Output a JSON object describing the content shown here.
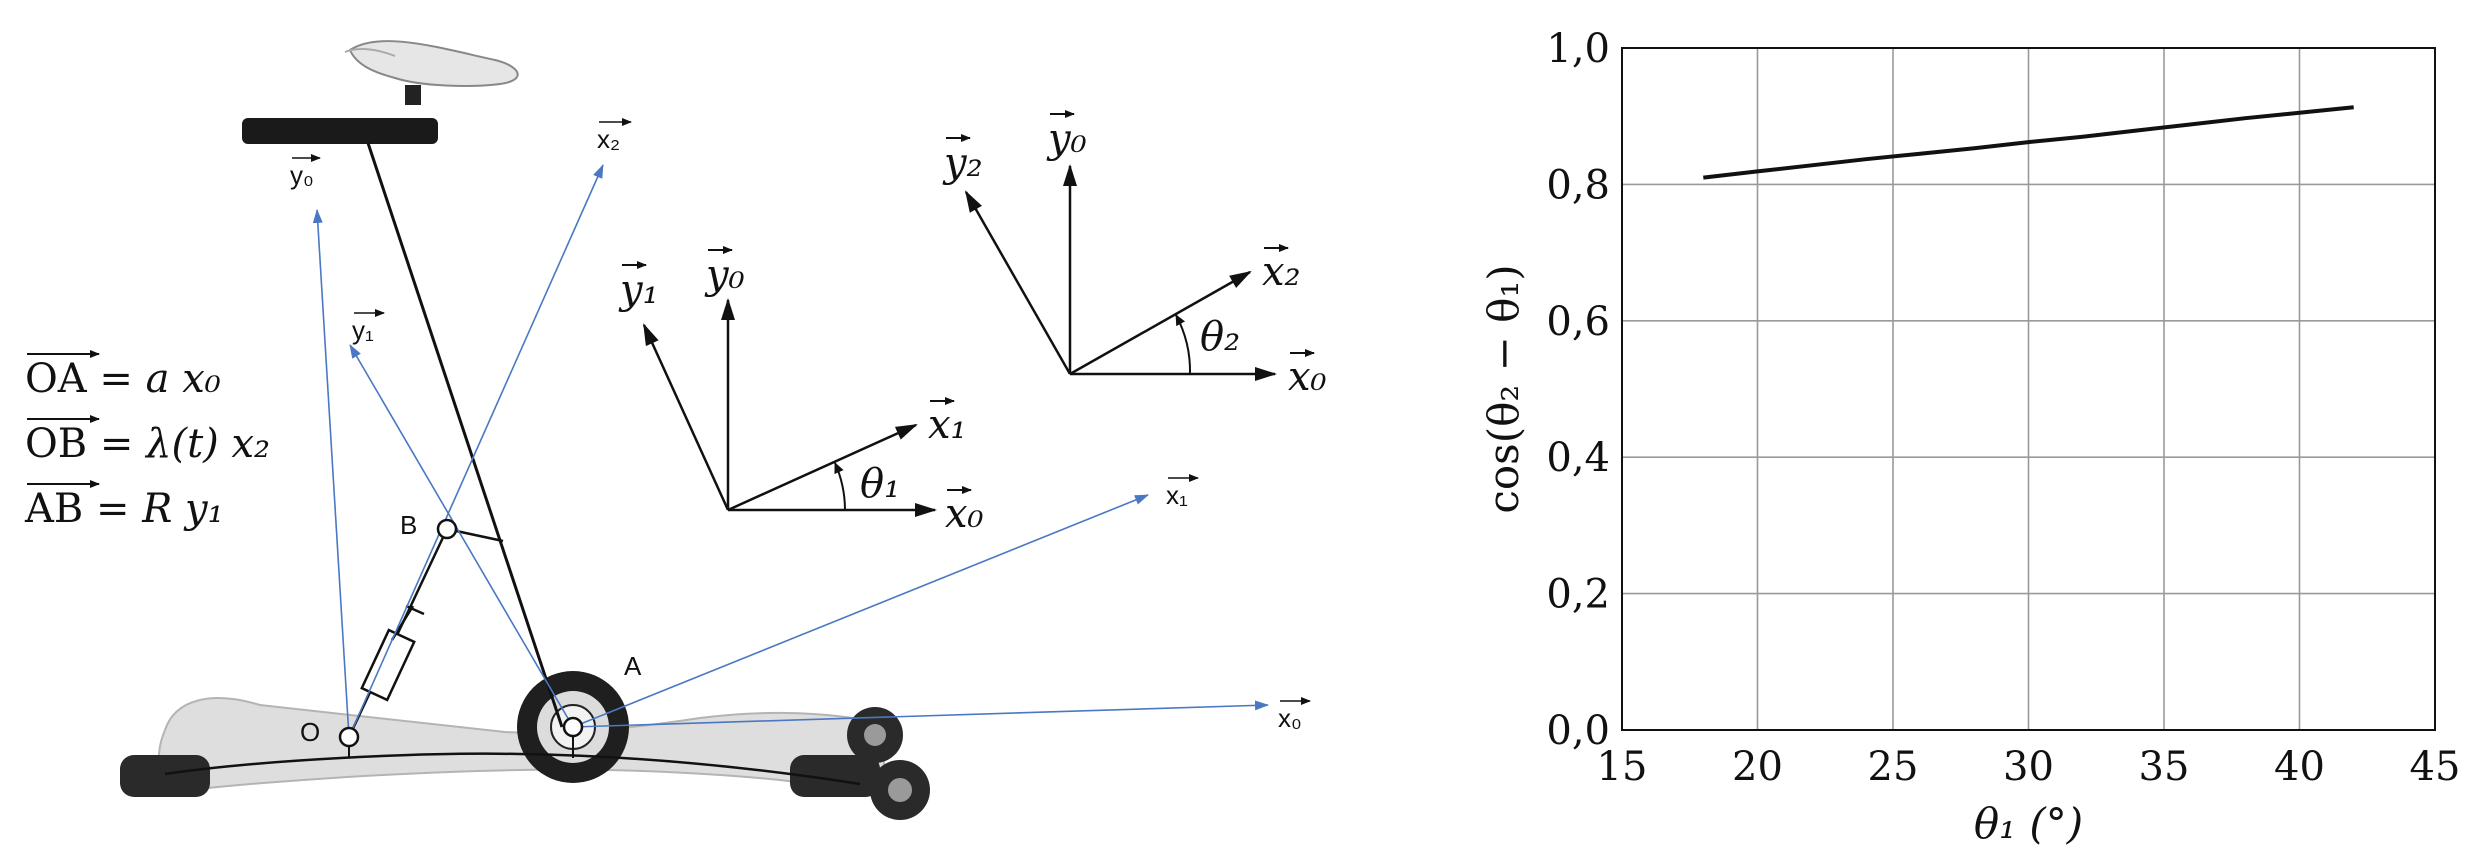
{
  "colors": {
    "ink": "#111111",
    "blue_axis": "#4a78c4",
    "grid": "#9a9a9a",
    "frame_grey": "#d2d2d2",
    "dark": "#1a1a1a"
  },
  "mechanism": {
    "points": {
      "O": "O",
      "A": "A",
      "B": "B"
    },
    "axis_labels": {
      "x0": "x₀",
      "y0": "y₀",
      "x1": "x₁",
      "y1": "y₁",
      "x2": "x₂"
    },
    "equations": [
      {
        "lhs": "OA",
        "rhs": " = a x₀"
      },
      {
        "lhs": "OB",
        "rhs": " = λ(t) x₂"
      },
      {
        "lhs": "AB",
        "rhs": " = R y₁"
      }
    ]
  },
  "frame1": {
    "labels": {
      "x1": "x₁",
      "y1": "y₁",
      "x0": "x₀",
      "y0": "y₀",
      "angle": "θ₁"
    }
  },
  "frame2": {
    "labels": {
      "x2": "x₂",
      "y2": "y₂",
      "x0": "x₀",
      "y0": "y₀",
      "angle": "θ₂"
    }
  },
  "chart_data": {
    "type": "line",
    "title": "",
    "xlabel": "θ₁ (°)",
    "ylabel": "cos(θ₂ − θ₁)",
    "xlim": [
      15,
      45
    ],
    "ylim": [
      0.0,
      1.0
    ],
    "grid": true,
    "xticks": [
      15,
      20,
      25,
      30,
      35,
      40,
      45
    ],
    "xtick_labels": [
      "15",
      "20",
      "25",
      "30",
      "35",
      "40",
      "45"
    ],
    "yticks": [
      0.0,
      0.2,
      0.4,
      0.6,
      0.8,
      1.0
    ],
    "ytick_labels": [
      "0,0",
      "0,2",
      "0,4",
      "0,6",
      "0,8",
      "1,0"
    ],
    "series": [
      {
        "name": "cos(θ₂ − θ₁)",
        "x": [
          18,
          20,
          22,
          24,
          26,
          28,
          30,
          32,
          34,
          36,
          38,
          40,
          42
        ],
        "y": [
          0.81,
          0.819,
          0.828,
          0.837,
          0.845,
          0.853,
          0.862,
          0.87,
          0.879,
          0.888,
          0.897,
          0.905,
          0.913
        ]
      }
    ]
  }
}
